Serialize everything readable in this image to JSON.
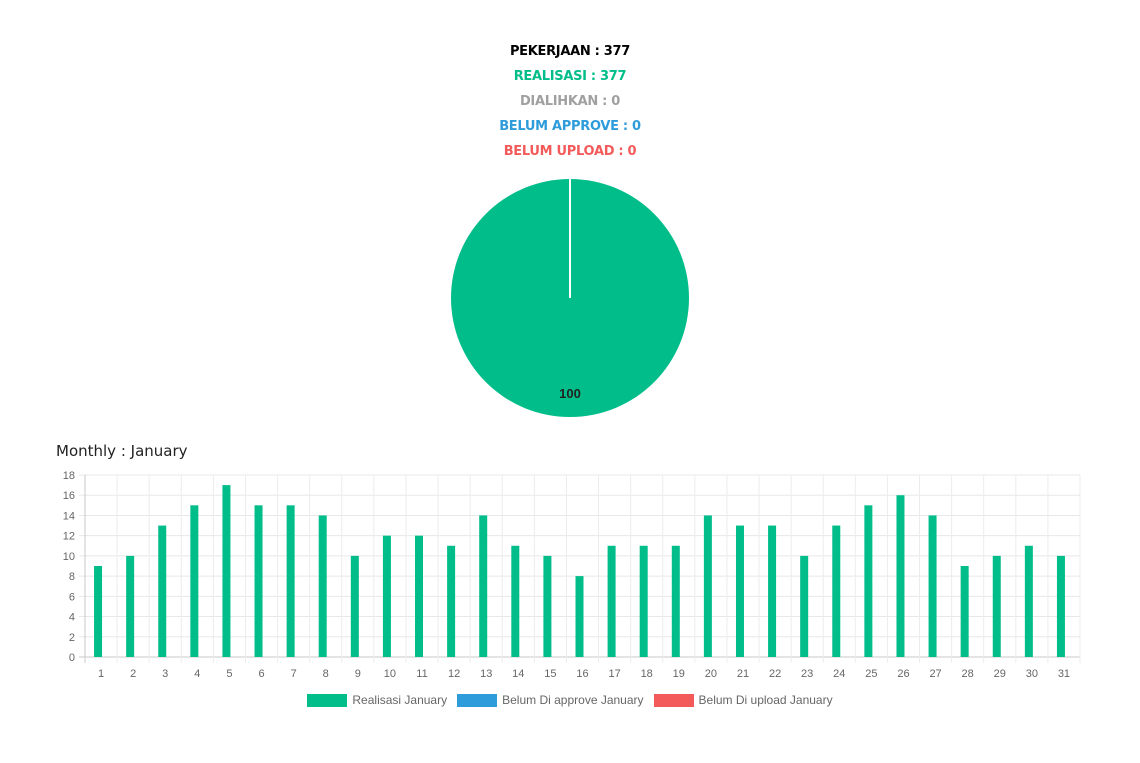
{
  "summary": {
    "pekerjaan": "PEKERJAAN : 377",
    "realisasi": "REALISASI : 377",
    "dialihkan": "DIALIHKAN : 0",
    "belum_approve": "BELUM APPROVE : 0",
    "belum_upload": "BELUM UPLOAD : 0"
  },
  "colors": {
    "black": "#000000",
    "realisasi": "#00BD8A",
    "dialihkan": "#A0A0A0",
    "approve": "#2E9CDB",
    "upload": "#F35B5B"
  },
  "chart_data": [
    {
      "type": "pie",
      "slices": [
        {
          "label": "Realisasi",
          "value": 100,
          "color": "#00BD8A"
        }
      ],
      "data_label": "100"
    },
    {
      "type": "bar",
      "title": "Monthly : January",
      "categories": [
        "1",
        "2",
        "3",
        "4",
        "5",
        "6",
        "7",
        "8",
        "9",
        "10",
        "11",
        "12",
        "13",
        "14",
        "15",
        "16",
        "17",
        "18",
        "19",
        "20",
        "21",
        "22",
        "23",
        "24",
        "25",
        "26",
        "27",
        "28",
        "29",
        "30",
        "31"
      ],
      "series": [
        {
          "name": "Realisasi January",
          "color": "#00BD8A",
          "values": [
            9,
            10,
            13,
            15,
            17,
            15,
            15,
            14,
            10,
            12,
            12,
            11,
            14,
            11,
            10,
            8,
            11,
            11,
            11,
            14,
            13,
            13,
            10,
            13,
            15,
            16,
            14,
            9,
            10,
            11,
            10
          ]
        },
        {
          "name": "Belum Di approve January",
          "color": "#2E9CDB",
          "values": [
            0,
            0,
            0,
            0,
            0,
            0,
            0,
            0,
            0,
            0,
            0,
            0,
            0,
            0,
            0,
            0,
            0,
            0,
            0,
            0,
            0,
            0,
            0,
            0,
            0,
            0,
            0,
            0,
            0,
            0,
            0
          ]
        },
        {
          "name": "Belum Di upload January",
          "color": "#F35B5B",
          "values": [
            0,
            0,
            0,
            0,
            0,
            0,
            0,
            0,
            0,
            0,
            0,
            0,
            0,
            0,
            0,
            0,
            0,
            0,
            0,
            0,
            0,
            0,
            0,
            0,
            0,
            0,
            0,
            0,
            0,
            0,
            0
          ]
        }
      ],
      "ylim": [
        0,
        18
      ],
      "yticks": [
        0,
        2,
        4,
        6,
        8,
        10,
        12,
        14,
        16,
        18
      ],
      "grid": true,
      "legend": "bottom"
    }
  ]
}
